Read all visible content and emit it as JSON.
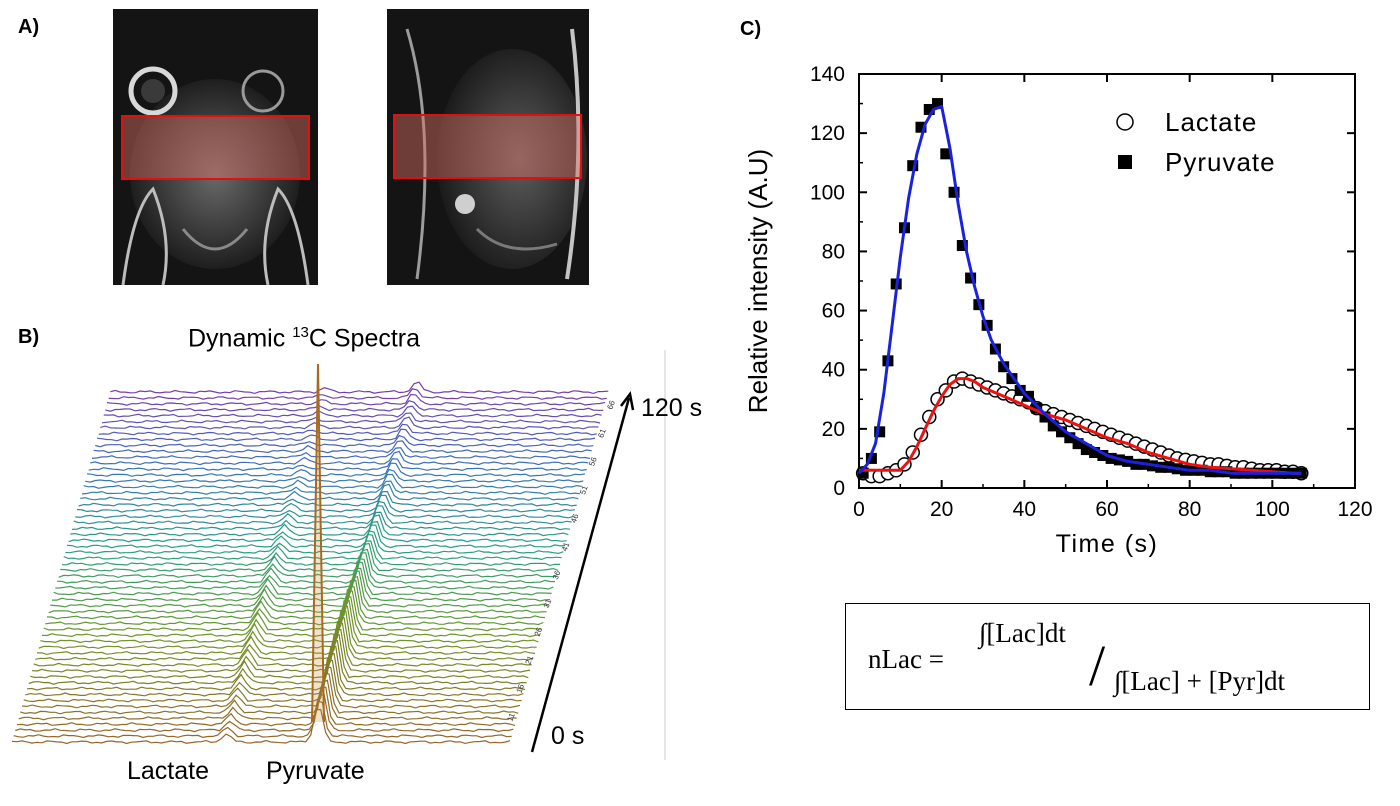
{
  "panels": {
    "a": "A)",
    "b": "B)",
    "c": "C)"
  },
  "panel_b": {
    "title_prefix": "Dynamic ",
    "title_sup": "13",
    "title_suffix": "C Spectra",
    "time_end": "120 s",
    "time_start": "0 s",
    "peak_lactate": "Lactate",
    "peak_pyruvate": "Pyruvate",
    "depth_ticks": [
      "66",
      "61",
      "56",
      "51",
      "46",
      "41",
      "36",
      "31",
      "26",
      "21",
      "16",
      "11"
    ]
  },
  "formula": {
    "lhs": "nLac =",
    "numerator": "∫[Lac]dt",
    "slash": "/",
    "denominator": "∫[Lac] + [Pyr]dt"
  },
  "chart_data": {
    "type": "scatter",
    "title": "",
    "xlabel": "Time (s)",
    "ylabel": "Relative intensity (A.U)",
    "xlim": [
      0,
      120
    ],
    "ylim": [
      0,
      140
    ],
    "xticks": [
      0,
      20,
      40,
      60,
      80,
      100,
      120
    ],
    "yticks": [
      0,
      20,
      40,
      60,
      80,
      100,
      120,
      140
    ],
    "legend": "top-right",
    "series": [
      {
        "name": "Lactate",
        "marker": "open-circle",
        "fit_color": "#ee1111",
        "x": [
          1,
          3,
          5,
          7,
          9,
          11,
          13,
          15,
          17,
          19,
          21,
          23,
          25,
          27,
          29,
          31,
          33,
          35,
          37,
          39,
          41,
          43,
          45,
          47,
          49,
          51,
          53,
          55,
          57,
          59,
          61,
          63,
          65,
          67,
          69,
          71,
          73,
          75,
          77,
          79,
          81,
          83,
          85,
          87,
          89,
          91,
          93,
          95,
          97,
          99,
          101,
          103,
          105,
          107
        ],
        "y": [
          5,
          4,
          4,
          5,
          6,
          8,
          12,
          18,
          24,
          30,
          33,
          36,
          37,
          36,
          35,
          34,
          33,
          32,
          31,
          30,
          29,
          27,
          26,
          25,
          24,
          23,
          22,
          21,
          20,
          19,
          18,
          17,
          16,
          15,
          14,
          13,
          12,
          11,
          10,
          9.5,
          9,
          8.5,
          8,
          8,
          7.5,
          7,
          7,
          6.5,
          6,
          6,
          6,
          5.5,
          5.5,
          5
        ],
        "fit_x": [
          0,
          10,
          12,
          14,
          16,
          18,
          20,
          22,
          24,
          26,
          28,
          30,
          35,
          40,
          45,
          50,
          55,
          60,
          65,
          70,
          75,
          80,
          85,
          90,
          95,
          100,
          105,
          107
        ],
        "fit_y": [
          6,
          6,
          9,
          14,
          20,
          26,
          31,
          35,
          37,
          37,
          36,
          34,
          31,
          28,
          25,
          23,
          20,
          17,
          15,
          12,
          10,
          8,
          7,
          6.5,
          6,
          5.5,
          5,
          5
        ]
      },
      {
        "name": "Pyruvate",
        "marker": "filled-square",
        "fit_color": "#1a22dd",
        "x": [
          1,
          3,
          5,
          7,
          9,
          11,
          13,
          15,
          17,
          19,
          21,
          23,
          25,
          27,
          29,
          31,
          33,
          35,
          37,
          39,
          41,
          43,
          45,
          47,
          49,
          51,
          53,
          55,
          57,
          59,
          61,
          63,
          65,
          67,
          69,
          71,
          73,
          75,
          77,
          79,
          81,
          83,
          85,
          87,
          89,
          91,
          93,
          95,
          97,
          99,
          101,
          103,
          105,
          107
        ],
        "y": [
          5,
          10,
          19,
          43,
          69,
          88,
          109,
          122,
          128,
          130,
          113,
          100,
          82,
          71,
          62,
          55,
          47,
          41,
          37,
          33,
          31,
          27,
          24,
          21,
          19,
          17,
          15,
          13,
          12,
          11,
          10,
          9.5,
          9,
          8,
          8,
          7.5,
          7,
          7,
          6.5,
          6,
          6,
          6,
          5.5,
          5.5,
          5.5,
          5,
          5,
          5,
          5,
          5,
          5,
          5,
          5,
          5
        ],
        "fit_x": [
          0,
          2,
          4,
          6,
          8,
          10,
          12,
          14,
          16,
          18,
          20,
          22,
          24,
          26,
          28,
          30,
          32,
          35,
          40,
          45,
          50,
          55,
          60,
          65,
          70,
          75,
          80,
          85,
          90,
          95,
          100,
          105,
          107
        ],
        "fit_y": [
          5,
          8,
          15,
          32,
          55,
          78,
          98,
          113,
          123,
          128,
          129,
          115,
          96,
          80,
          68,
          58,
          50,
          42,
          32,
          25,
          19,
          15,
          11,
          9,
          8,
          7,
          6,
          6,
          5,
          5,
          5,
          5,
          5
        ]
      }
    ]
  }
}
